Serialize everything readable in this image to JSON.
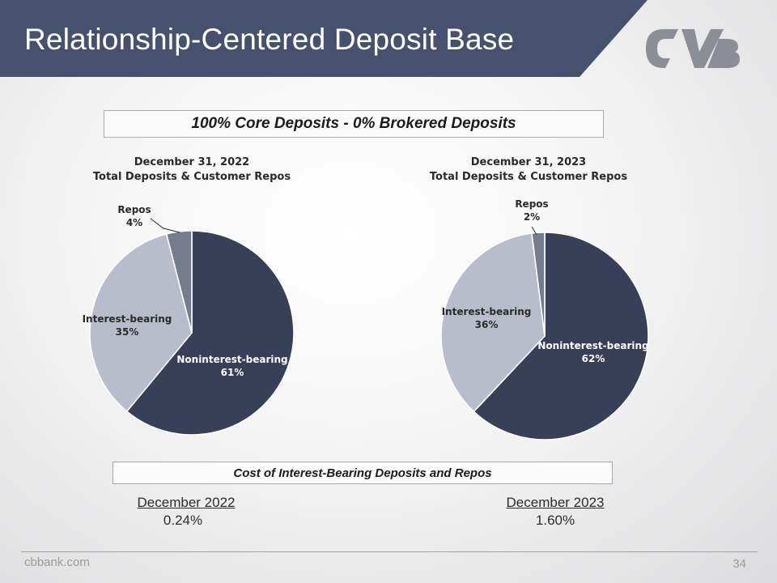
{
  "slide": {
    "title": "Relationship-Centered Deposit Base",
    "core_banner": "100% Core Deposits - 0% Brokered Deposits",
    "cost_banner": "Cost of Interest-Bearing Deposits and Repos",
    "footer_url": "cbbank.com",
    "page_number": "34"
  },
  "colors": {
    "title_bar": "#46526d",
    "noninterest": "#384057",
    "interest": "#b9bccb",
    "repos": "#757c8e",
    "logo": "#8b8e95"
  },
  "cost": [
    {
      "period": "December 2022",
      "rate": "0.24%"
    },
    {
      "period": "December 2023",
      "rate": "1.60%"
    }
  ],
  "chart_data": [
    {
      "type": "pie",
      "title_line1": "December 31, 2022",
      "title_line2": "Total Deposits & Customer Repos",
      "slices": [
        {
          "label": "Noninterest-bearing",
          "value": 61,
          "display": "61%"
        },
        {
          "label": "Interest-bearing",
          "value": 35,
          "display": "35%"
        },
        {
          "label": "Repos",
          "value": 4,
          "display": "4%"
        }
      ]
    },
    {
      "type": "pie",
      "title_line1": "December 31, 2023",
      "title_line2": "Total Deposits & Customer Repos",
      "slices": [
        {
          "label": "Noninterest-bearing",
          "value": 62,
          "display": "62%"
        },
        {
          "label": "Interest-bearing",
          "value": 36,
          "display": "36%"
        },
        {
          "label": "Repos",
          "value": 2,
          "display": "2%"
        }
      ]
    }
  ]
}
